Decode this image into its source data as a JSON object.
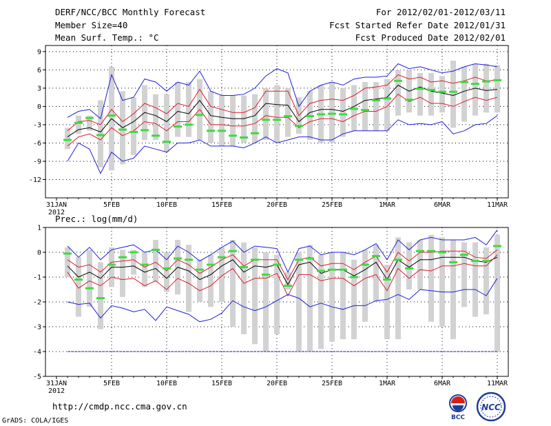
{
  "header": {
    "title": "DERF/NCC/BCC Monthly Forecast",
    "member_size": "Member Size=40",
    "period": "For 2012/02/01-2012/03/11",
    "fcst_started": "Fcst Started Refer Date 2012/01/31",
    "fcst_produced": "Fcst Produced Date 2012/02/01"
  },
  "footer": {
    "url": "http://cmdp.ncc.cma.gov.cn",
    "grads": "GrADS: COLA/IGES",
    "logo_bcc_text": "BCC",
    "logo_ncc_text": "NCC"
  },
  "chart_data": [
    {
      "type": "line",
      "title": "Mean Surf. Temp.: °C",
      "ylim": [
        -15,
        10
      ],
      "yticks": [
        9,
        6,
        3,
        0,
        -3,
        -6,
        -9,
        -12
      ],
      "ytick_labels": [
        "9",
        "6",
        "3",
        "0",
        "-3",
        "-6",
        "-9",
        "-12"
      ],
      "xtick_labels": [
        "31JAN\n2012",
        "5FEB",
        "10FEB",
        "15FEB",
        "20FEB",
        "25FEB",
        "1MAR",
        "6MAR",
        "11MAR"
      ],
      "xtick_days": [
        0,
        5,
        10,
        15,
        20,
        25,
        30,
        35,
        40
      ],
      "x": [
        1,
        2,
        3,
        4,
        5,
        6,
        7,
        8,
        9,
        10,
        11,
        12,
        13,
        14,
        15,
        16,
        17,
        18,
        19,
        20,
        21,
        22,
        23,
        24,
        25,
        26,
        27,
        28,
        29,
        30,
        31,
        32,
        33,
        34,
        35,
        36,
        37,
        38,
        39,
        40
      ],
      "series": [
        {
          "name": "ensemble_mean",
          "color": "#000000",
          "values": [
            -5.0,
            -3.8,
            -3.5,
            -4.2,
            -2.0,
            -3.5,
            -2.5,
            -1.0,
            -1.5,
            -2.5,
            -0.8,
            -1.2,
            1.0,
            -1.5,
            -1.8,
            -2.0,
            -2.0,
            -1.5,
            0.5,
            0.3,
            0.2,
            -2.5,
            -1.0,
            -0.5,
            -0.5,
            -0.8,
            0.0,
            1.0,
            1.2,
            1.5,
            3.5,
            2.5,
            3.2,
            2.5,
            2.2,
            1.8,
            2.5,
            3.0,
            2.6,
            2.8
          ]
        },
        {
          "name": "upper_inner",
          "color": "#dd1c2e",
          "values": [
            -4.0,
            -2.5,
            -2.3,
            -3.0,
            -0.5,
            -2.5,
            -1.2,
            0.5,
            -0.2,
            -1.2,
            0.5,
            0.0,
            2.8,
            0.0,
            -0.5,
            -1.0,
            -1.0,
            -0.2,
            2.5,
            2.5,
            2.5,
            -1.5,
            0.5,
            1.0,
            1.2,
            1.0,
            1.8,
            3.0,
            3.2,
            3.5,
            5.2,
            4.5,
            4.8,
            4.0,
            4.2,
            3.8,
            4.2,
            4.8,
            4.2,
            4.3
          ]
        },
        {
          "name": "lower_inner",
          "color": "#dd1c2e",
          "values": [
            -6.5,
            -5.0,
            -4.5,
            -5.5,
            -3.5,
            -4.8,
            -4.0,
            -2.5,
            -2.8,
            -4.0,
            -2.5,
            -2.5,
            -0.5,
            -3.0,
            -3.0,
            -3.2,
            -3.2,
            -2.8,
            -1.5,
            -1.8,
            -1.8,
            -3.5,
            -2.5,
            -2.0,
            -2.0,
            -2.5,
            -1.5,
            -0.8,
            -0.8,
            0.0,
            2.0,
            0.8,
            1.5,
            0.5,
            0.5,
            0.0,
            0.8,
            1.5,
            1.0,
            1.5
          ]
        },
        {
          "name": "upper_outer",
          "color": "#1e1edc",
          "values": [
            -1.8,
            -0.8,
            -0.5,
            -2.0,
            5.2,
            1.0,
            1.5,
            4.5,
            4.0,
            2.5,
            4.0,
            3.5,
            5.8,
            2.5,
            1.8,
            1.8,
            2.0,
            3.0,
            5.0,
            6.2,
            5.5,
            0.0,
            2.5,
            3.5,
            4.0,
            3.5,
            4.5,
            4.8,
            4.8,
            5.0,
            7.0,
            6.2,
            6.5,
            6.0,
            5.5,
            5.8,
            6.5,
            7.0,
            6.8,
            6.5
          ]
        },
        {
          "name": "lower_outer",
          "color": "#1e1edc",
          "values": [
            -9.0,
            -6.0,
            -7.0,
            -11.0,
            -7.5,
            -9.0,
            -8.5,
            -6.5,
            -7.0,
            -7.5,
            -6.0,
            -6.0,
            -5.5,
            -6.5,
            -6.5,
            -6.5,
            -6.8,
            -6.0,
            -5.0,
            -6.0,
            -5.5,
            -5.0,
            -5.0,
            -5.5,
            -5.5,
            -4.5,
            -4.0,
            -4.0,
            -4.0,
            -4.0,
            -2.2,
            -3.0,
            -2.8,
            -3.0,
            -2.5,
            -4.5,
            -4.0,
            -3.0,
            -2.8,
            -1.5
          ]
        }
      ],
      "boxes_low": [
        -7.0,
        -4.5,
        -4.0,
        -10.0,
        -10.5,
        -9.5,
        -8.0,
        -5.5,
        -5.5,
        -7.5,
        -5.0,
        -5.0,
        -5.5,
        -6.0,
        -6.5,
        -6.5,
        -6.0,
        -6.0,
        -5.5,
        -6.0,
        -5.0,
        -4.5,
        -5.5,
        -6.0,
        -6.0,
        -5.0,
        -4.0,
        -4.0,
        -4.0,
        -4.0,
        -1.5,
        -1.0,
        -1.5,
        -1.5,
        -1.0,
        -3.5,
        -2.5,
        -1.5,
        -1.0,
        -1.0
      ],
      "boxes_high": [
        -3.5,
        -1.5,
        -1.5,
        1.0,
        6.5,
        2.5,
        1.5,
        3.5,
        2.0,
        2.0,
        4.0,
        4.0,
        4.5,
        2.5,
        1.8,
        1.8,
        1.8,
        2.0,
        3.0,
        3.5,
        3.0,
        1.5,
        2.5,
        3.5,
        4.0,
        3.0,
        3.5,
        4.0,
        4.0,
        4.5,
        6.0,
        6.0,
        5.5,
        5.5,
        5.0,
        7.5,
        6.5,
        7.0,
        7.0,
        6.8
      ],
      "green_marks": [
        -5.5,
        -2.7,
        -1.9,
        -4.7,
        -1.5,
        -3.8,
        -4.2,
        -3.9,
        -4.8,
        -5.8,
        -3.3,
        -3.0,
        -1.4,
        -4.0,
        -4.0,
        -4.8,
        -5.1,
        -4.4,
        -2.2,
        -2.2,
        -1.6,
        -3.2,
        -1.6,
        -1.3,
        -1.2,
        -1.3,
        -0.4,
        -0.6,
        1.0,
        1.3,
        4.2,
        1.1,
        2.9,
        2.7,
        2.4,
        2.4,
        4.0,
        3.7,
        4.1,
        4.3
      ]
    },
    {
      "type": "line",
      "title": "Prec.: log(mm/d)",
      "ylim": [
        -5,
        1
      ],
      "yticks": [
        1,
        0,
        -1,
        -2,
        -3,
        -4,
        -5
      ],
      "ytick_labels": [
        "1",
        "0",
        "-1",
        "-2",
        "-3",
        "-4",
        "-5"
      ],
      "xtick_labels": [
        "31JAN\n2012",
        "5FEB",
        "10FEB",
        "15FEB",
        "20FEB",
        "25FEB",
        "1MAR",
        "6MAR",
        "11MAR"
      ],
      "xtick_days": [
        0,
        5,
        10,
        15,
        20,
        25,
        30,
        35,
        40
      ],
      "x": [
        1,
        2,
        3,
        4,
        5,
        6,
        7,
        8,
        9,
        10,
        11,
        12,
        13,
        14,
        15,
        16,
        17,
        18,
        19,
        20,
        21,
        22,
        23,
        24,
        25,
        26,
        27,
        28,
        29,
        30,
        31,
        32,
        33,
        34,
        35,
        36,
        37,
        38,
        39,
        40
      ],
      "reference_line": {
        "value": -4.0,
        "color": "#1e1edc",
        "style": "dashed"
      },
      "series": [
        {
          "name": "ensemble_mean",
          "color": "#000000",
          "values": [
            -0.55,
            -1.0,
            -0.8,
            -1.05,
            -0.6,
            -0.6,
            -0.55,
            -0.8,
            -0.65,
            -1.05,
            -0.6,
            -0.75,
            -1.1,
            -0.9,
            -0.55,
            -0.3,
            -0.8,
            -0.55,
            -0.6,
            -0.5,
            -1.3,
            -0.5,
            -0.4,
            -0.85,
            -0.7,
            -0.7,
            -0.95,
            -0.7,
            -0.4,
            -1.1,
            -0.3,
            -0.6,
            -0.3,
            -0.3,
            -0.2,
            -0.2,
            -0.2,
            -0.35,
            -0.4,
            -0.2
          ]
        },
        {
          "name": "upper_inner",
          "color": "#dd1c2e",
          "values": [
            -0.3,
            -0.6,
            -0.5,
            -0.8,
            -0.4,
            -0.35,
            -0.3,
            -0.6,
            -0.4,
            -0.75,
            -0.3,
            -0.5,
            -0.85,
            -0.6,
            -0.3,
            -0.1,
            -0.55,
            -0.3,
            -0.3,
            -0.3,
            -1.1,
            -0.3,
            -0.2,
            -0.55,
            -0.45,
            -0.45,
            -0.7,
            -0.4,
            -0.15,
            -0.8,
            0.0,
            -0.35,
            0.0,
            0.0,
            0.05,
            0.05,
            0.05,
            -0.2,
            -0.25,
            0.1
          ]
        },
        {
          "name": "lower_inner",
          "color": "#dd1c2e",
          "values": [
            -0.8,
            -1.45,
            -1.15,
            -1.35,
            -1.0,
            -1.1,
            -1.05,
            -1.35,
            -1.15,
            -1.5,
            -1.05,
            -1.25,
            -1.55,
            -1.35,
            -0.95,
            -0.65,
            -1.25,
            -1.05,
            -1.05,
            -0.85,
            -1.75,
            -0.9,
            -0.9,
            -1.15,
            -1.05,
            -1.05,
            -1.35,
            -1.05,
            -0.9,
            -1.55,
            -0.65,
            -1.05,
            -0.7,
            -0.75,
            -0.55,
            -0.55,
            -0.45,
            -0.55,
            -0.55,
            -0.1
          ]
        },
        {
          "name": "upper_outer",
          "color": "#1e1edc",
          "values": [
            0.25,
            -0.2,
            0.2,
            -0.3,
            0.1,
            0.2,
            0.3,
            0.0,
            0.1,
            -0.3,
            0.25,
            0.0,
            -0.35,
            -0.1,
            0.2,
            0.45,
            0.0,
            0.25,
            0.2,
            0.15,
            -0.8,
            0.15,
            0.25,
            -0.1,
            0.0,
            0.0,
            -0.1,
            0.1,
            0.35,
            -0.3,
            0.5,
            0.1,
            0.5,
            0.6,
            0.5,
            0.5,
            0.5,
            0.6,
            0.3,
            0.9
          ]
        },
        {
          "name": "lower_outer",
          "color": "#1e1edc",
          "values": [
            -2.0,
            -2.1,
            -2.05,
            -2.65,
            -2.15,
            -2.25,
            -2.4,
            -2.3,
            -2.75,
            -2.2,
            -2.35,
            -2.5,
            -2.8,
            -2.7,
            -2.45,
            -1.95,
            -2.2,
            -2.35,
            -2.2,
            -1.95,
            -1.7,
            -1.85,
            -2.2,
            -2.05,
            -2.2,
            -2.3,
            -2.15,
            -2.15,
            -1.95,
            -1.9,
            -1.7,
            -1.9,
            -1.5,
            -1.55,
            -1.6,
            -1.6,
            -1.5,
            -1.5,
            -1.75,
            -1.05
          ]
        }
      ],
      "boxes_low": [
        -1.0,
        -2.6,
        -2.2,
        -3.1,
        -1.4,
        -1.8,
        -0.9,
        -1.4,
        -1.2,
        -1.6,
        -1.7,
        -2.4,
        -2.0,
        -2.2,
        -2.0,
        -3.0,
        -3.3,
        -3.7,
        -4.0,
        -3.3,
        -1.5,
        -4.0,
        -4.0,
        -3.9,
        -3.6,
        -3.5,
        -3.5,
        -2.8,
        -2.0,
        -3.5,
        -3.5,
        -1.5,
        -1.5,
        -2.8,
        -3.0,
        -3.5,
        -2.2,
        -2.6,
        -2.5,
        -4.0
      ],
      "boxes_high": [
        0.2,
        -0.2,
        0.1,
        -0.4,
        0.2,
        0.1,
        0.1,
        0.0,
        0.5,
        0.0,
        0.5,
        0.3,
        -0.3,
        -0.1,
        0.2,
        0.5,
        0.4,
        0.2,
        0.0,
        -0.1,
        -0.8,
        0.0,
        0.3,
        -0.1,
        0.0,
        0.0,
        -0.3,
        0.1,
        0.3,
        -0.5,
        0.6,
        0.4,
        0.5,
        0.7,
        0.6,
        0.5,
        0.4,
        0.4,
        0.2,
        0.7
      ],
      "green_marks": [
        -0.05,
        -1.1,
        -1.45,
        -1.85,
        -0.5,
        -0.2,
        0.0,
        -0.5,
        0.1,
        -0.65,
        -0.25,
        -0.3,
        -0.7,
        -0.5,
        -0.2,
        0.05,
        -0.6,
        -0.3,
        -0.9,
        -0.5,
        -1.35,
        -0.3,
        -0.25,
        -0.75,
        -0.7,
        -0.7,
        -1.0,
        -0.5,
        -0.15,
        -1.1,
        -0.3,
        -0.65,
        0.05,
        0.05,
        0.0,
        -0.4,
        -0.1,
        -0.35,
        -0.35,
        0.25
      ]
    }
  ]
}
